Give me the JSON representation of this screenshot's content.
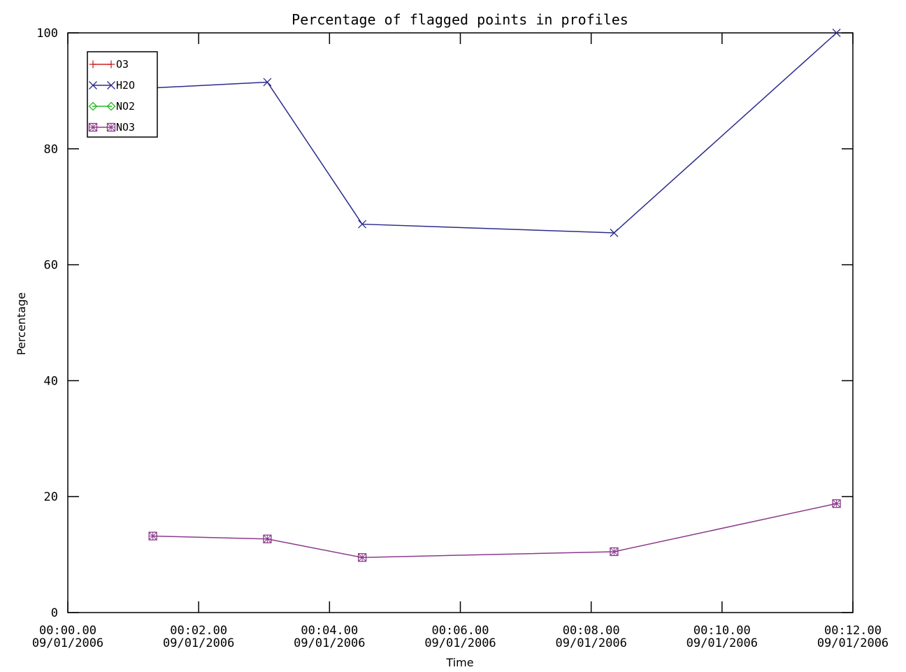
{
  "chart_data": {
    "type": "line",
    "title": "Percentage of flagged points in profiles",
    "xlabel": "Time",
    "ylabel": "Percentage",
    "xlim_minutes": [
      0,
      12
    ],
    "ylim": [
      0,
      100
    ],
    "x_ticks": [
      {
        "minutes": 0,
        "time": "00:00.00",
        "date": "09/01/2006"
      },
      {
        "minutes": 2,
        "time": "00:02.00",
        "date": "09/01/2006"
      },
      {
        "minutes": 4,
        "time": "00:04.00",
        "date": "09/01/2006"
      },
      {
        "minutes": 6,
        "time": "00:06.00",
        "date": "09/01/2006"
      },
      {
        "minutes": 8,
        "time": "00:08.00",
        "date": "09/01/2006"
      },
      {
        "minutes": 10,
        "time": "00:10.00",
        "date": "09/01/2006"
      },
      {
        "minutes": 12,
        "time": "00:12.00",
        "date": "09/01/2006"
      }
    ],
    "y_ticks": [
      0,
      20,
      40,
      60,
      80,
      100
    ],
    "grid": false,
    "legend_position": "top-left",
    "series": [
      {
        "name": "O3",
        "color": "#cc2222",
        "marker": "plus",
        "x_minutes": [],
        "values": []
      },
      {
        "name": "H2O",
        "color": "#2b2b8c",
        "marker": "x",
        "x_minutes": [
          1.3,
          3.05,
          4.5,
          8.35,
          11.75
        ],
        "values": [
          90.5,
          91.5,
          67,
          65.5,
          100
        ]
      },
      {
        "name": "NO2",
        "color": "#22bb22",
        "marker": "diamond",
        "x_minutes": [],
        "values": []
      },
      {
        "name": "NO3",
        "color": "#8b3a8b",
        "marker": "square-x",
        "x_minutes": [
          1.3,
          3.05,
          4.5,
          8.35,
          11.75
        ],
        "values": [
          13.2,
          12.7,
          9.5,
          10.5,
          18.8
        ]
      }
    ]
  }
}
